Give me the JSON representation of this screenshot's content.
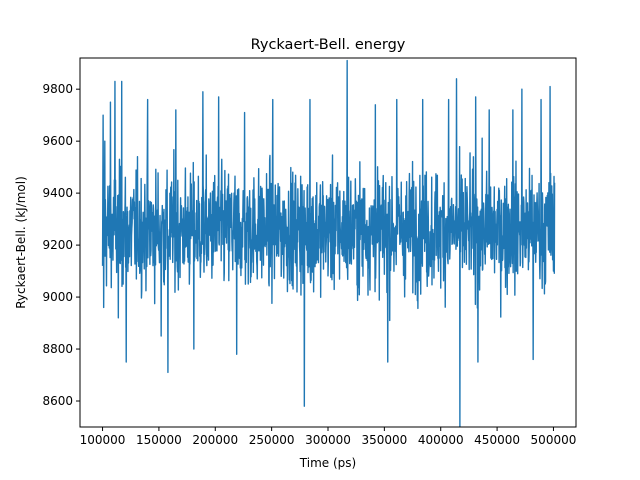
{
  "chart_data": {
    "type": "line",
    "title": "Ryckaert-Bell. energy",
    "xlabel": "Time (ps)",
    "ylabel": "Ryckaert-Bell. (kJ/mol)",
    "xlim": [
      80000,
      520000
    ],
    "ylim": [
      8500,
      9920
    ],
    "x_ticks": [
      100000,
      150000,
      200000,
      250000,
      300000,
      350000,
      400000,
      450000,
      500000
    ],
    "y_ticks": [
      8600,
      8800,
      9000,
      9200,
      9400,
      9600,
      9800
    ],
    "grid": false,
    "legend": "none",
    "series": [
      {
        "color": "#1f77b4",
        "x_range": [
          100000,
          501000
        ],
        "mean": 9260,
        "typical_band": [
          8950,
          9650
        ],
        "points": [
          [
            100000,
            9120
          ],
          [
            100500,
            9700
          ],
          [
            101000,
            8960
          ],
          [
            102000,
            9600
          ],
          [
            107000,
            9750
          ],
          [
            111000,
            9830
          ],
          [
            114000,
            8920
          ],
          [
            117000,
            9830
          ],
          [
            121000,
            8750
          ],
          [
            140000,
            9760
          ],
          [
            152000,
            8850
          ],
          [
            158000,
            8710
          ],
          [
            165000,
            9720
          ],
          [
            181000,
            8800
          ],
          [
            189000,
            9790
          ],
          [
            203000,
            9770
          ],
          [
            219000,
            8780
          ],
          [
            226000,
            9710
          ],
          [
            251000,
            9760
          ],
          [
            279000,
            8580
          ],
          [
            284000,
            9760
          ],
          [
            317000,
            9910
          ],
          [
            342000,
            9740
          ],
          [
            353000,
            8750
          ],
          [
            361000,
            9760
          ],
          [
            384000,
            9760
          ],
          [
            407000,
            9760
          ],
          [
            414000,
            9840
          ],
          [
            417000,
            8500
          ],
          [
            431000,
            9770
          ],
          [
            433000,
            8750
          ],
          [
            443000,
            9720
          ],
          [
            464000,
            9720
          ],
          [
            472000,
            9800
          ],
          [
            482000,
            8760
          ],
          [
            489000,
            9760
          ],
          [
            497000,
            9810
          ],
          [
            500000,
            9100
          ],
          [
            501000,
            9440
          ]
        ]
      }
    ]
  }
}
